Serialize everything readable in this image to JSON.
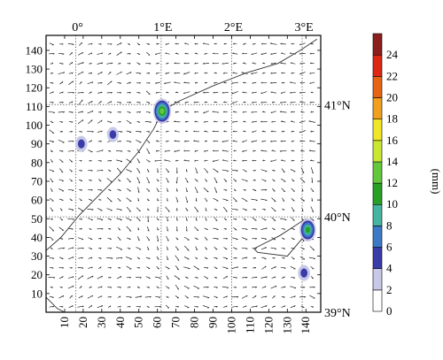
{
  "map": {
    "top_labels": [
      "0°",
      "1°E",
      "2°E",
      "3°E"
    ],
    "right_labels": [
      "41°N",
      "40°N",
      "39°N"
    ],
    "x_ticks": [
      "10",
      "20",
      "30",
      "40",
      "50",
      "60",
      "70",
      "80",
      "90",
      "100",
      "110",
      "120",
      "130",
      "140"
    ],
    "y_ticks": [
      "10",
      "20",
      "30",
      "40",
      "50",
      "60",
      "70",
      "80",
      "90",
      "100",
      "110",
      "120",
      "130",
      "140"
    ],
    "grid_x_range": [
      0,
      148
    ],
    "grid_y_range": [
      0,
      148
    ],
    "meridians": [
      {
        "label": "0°",
        "x_grid": 16
      },
      {
        "label": "1°E",
        "x_grid": 62
      },
      {
        "label": "2°E",
        "x_grid": 100
      },
      {
        "label": "3°E",
        "x_grid": 138
      }
    ],
    "parallels": [
      {
        "label": "41°N",
        "y_grid": 111
      },
      {
        "label": "40°N",
        "y_grid": 51
      },
      {
        "label": "39°N",
        "y_grid": 0
      }
    ],
    "precip_cells": [
      {
        "x": 62.5,
        "y": 107.5,
        "peak_mm": 12,
        "size": 1.0
      },
      {
        "x": 19,
        "y": 90,
        "peak_mm": 4,
        "size": 0.35
      },
      {
        "x": 36,
        "y": 95,
        "peak_mm": 4,
        "size": 0.3
      },
      {
        "x": 141,
        "y": 44,
        "peak_mm": 10,
        "size": 0.85
      },
      {
        "x": 139,
        "y": 21,
        "peak_mm": 4,
        "size": 0.35
      }
    ],
    "colors": {
      "frame": "#000000",
      "vectors": "#222222",
      "coast": "#333333",
      "grid_dots": "#555555"
    }
  },
  "colorbar": {
    "unit_label": "(mm)",
    "tick_labels": [
      "0",
      "2",
      "4",
      "6",
      "8",
      "10",
      "12",
      "14",
      "16",
      "18",
      "20",
      "22",
      "24"
    ],
    "range": [
      0,
      26
    ],
    "levels": [
      {
        "from": 0,
        "to": 2,
        "color": "#ffffff"
      },
      {
        "from": 2,
        "to": 4,
        "color": "#c8c8e8"
      },
      {
        "from": 4,
        "to": 6,
        "color": "#3a3aa8"
      },
      {
        "from": 6,
        "to": 8,
        "color": "#3c7ac8"
      },
      {
        "from": 8,
        "to": 10,
        "color": "#46b4a0"
      },
      {
        "from": 10,
        "to": 12,
        "color": "#28a028"
      },
      {
        "from": 12,
        "to": 14,
        "color": "#64c83c"
      },
      {
        "from": 14,
        "to": 16,
        "color": "#c8e632"
      },
      {
        "from": 16,
        "to": 18,
        "color": "#f0e628"
      },
      {
        "from": 18,
        "to": 20,
        "color": "#f0a01e"
      },
      {
        "from": 20,
        "to": 22,
        "color": "#e66414"
      },
      {
        "from": 22,
        "to": 24,
        "color": "#dc2814"
      },
      {
        "from": 24,
        "to": 26,
        "color": "#8c1e1e"
      }
    ]
  }
}
